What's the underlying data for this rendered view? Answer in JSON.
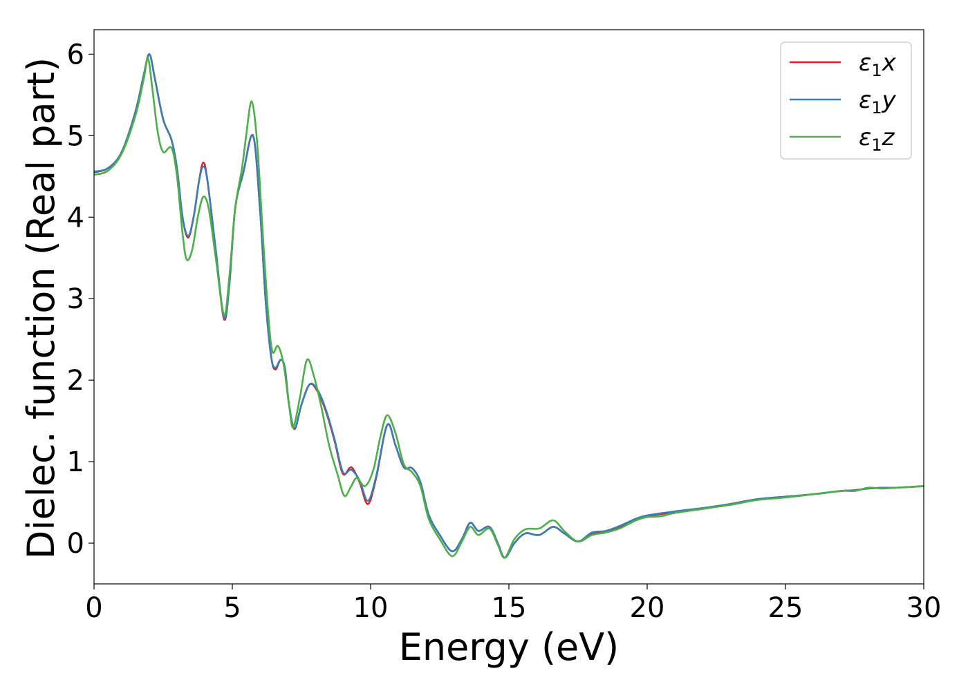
{
  "chart_data": {
    "type": "line",
    "xlabel": "Energy (eV)",
    "ylabel": "Dielec. function (Real part)",
    "xlim": [
      0,
      30
    ],
    "ylim": [
      -0.5,
      6.3
    ],
    "xticks": [
      "0",
      "5",
      "10",
      "15",
      "20",
      "25",
      "30"
    ],
    "yticks": [
      "0",
      "1",
      "2",
      "3",
      "4",
      "5",
      "6"
    ],
    "grid": false,
    "legend_position": "top-right",
    "series": [
      {
        "name": "ε₁x",
        "name_base": "ε",
        "name_sub": "1",
        "name_suffix": "x",
        "color": "#e41a1c",
        "points": [
          [
            0,
            4.55
          ],
          [
            0.5,
            4.6
          ],
          [
            1.0,
            4.8
          ],
          [
            1.5,
            5.3
          ],
          [
            1.8,
            5.75
          ],
          [
            2.0,
            6.0
          ],
          [
            2.2,
            5.7
          ],
          [
            2.5,
            5.2
          ],
          [
            2.8,
            4.95
          ],
          [
            3.0,
            4.6
          ],
          [
            3.2,
            4.0
          ],
          [
            3.4,
            3.75
          ],
          [
            3.6,
            4.0
          ],
          [
            3.8,
            4.45
          ],
          [
            3.95,
            4.67
          ],
          [
            4.1,
            4.45
          ],
          [
            4.4,
            3.6
          ],
          [
            4.7,
            2.75
          ],
          [
            4.9,
            3.2
          ],
          [
            5.1,
            4.1
          ],
          [
            5.4,
            4.55
          ],
          [
            5.75,
            5.0
          ],
          [
            6.0,
            4.1
          ],
          [
            6.2,
            3.0
          ],
          [
            6.4,
            2.3
          ],
          [
            6.55,
            2.13
          ],
          [
            6.75,
            2.25
          ],
          [
            6.9,
            2.15
          ],
          [
            7.05,
            1.7
          ],
          [
            7.25,
            1.4
          ],
          [
            7.5,
            1.7
          ],
          [
            7.8,
            1.95
          ],
          [
            8.1,
            1.85
          ],
          [
            8.4,
            1.6
          ],
          [
            8.7,
            1.25
          ],
          [
            9.0,
            0.85
          ],
          [
            9.3,
            0.93
          ],
          [
            9.6,
            0.75
          ],
          [
            9.9,
            0.48
          ],
          [
            10.2,
            0.8
          ],
          [
            10.6,
            1.45
          ],
          [
            10.9,
            1.2
          ],
          [
            11.2,
            0.93
          ],
          [
            11.5,
            0.92
          ],
          [
            11.8,
            0.75
          ],
          [
            12.1,
            0.35
          ],
          [
            12.5,
            0.1
          ],
          [
            12.95,
            -0.1
          ],
          [
            13.3,
            0.05
          ],
          [
            13.6,
            0.25
          ],
          [
            13.9,
            0.15
          ],
          [
            14.3,
            0.2
          ],
          [
            14.6,
            0.0
          ],
          [
            14.85,
            -0.18
          ],
          [
            15.2,
            0.0
          ],
          [
            15.6,
            0.12
          ],
          [
            16.1,
            0.1
          ],
          [
            16.6,
            0.2
          ],
          [
            17.0,
            0.12
          ],
          [
            17.5,
            0.02
          ],
          [
            18.0,
            0.12
          ],
          [
            18.5,
            0.14
          ],
          [
            19.0,
            0.2
          ],
          [
            19.6,
            0.3
          ],
          [
            20.0,
            0.33
          ],
          [
            21.0,
            0.38
          ],
          [
            22.0,
            0.42
          ],
          [
            23.0,
            0.48
          ],
          [
            24.0,
            0.54
          ],
          [
            25.0,
            0.57
          ],
          [
            26.0,
            0.6
          ],
          [
            27.0,
            0.64
          ],
          [
            27.5,
            0.65
          ],
          [
            28.0,
            0.67
          ],
          [
            28.5,
            0.68
          ],
          [
            29.0,
            0.68
          ],
          [
            30.0,
            0.7
          ]
        ]
      },
      {
        "name": "ε₁y",
        "name_base": "ε",
        "name_sub": "1",
        "name_suffix": "y",
        "color": "#377eb8",
        "points": [
          [
            0,
            4.56
          ],
          [
            0.5,
            4.6
          ],
          [
            1.0,
            4.8
          ],
          [
            1.5,
            5.3
          ],
          [
            1.8,
            5.75
          ],
          [
            2.0,
            6.0
          ],
          [
            2.2,
            5.7
          ],
          [
            2.5,
            5.2
          ],
          [
            2.8,
            4.95
          ],
          [
            3.0,
            4.6
          ],
          [
            3.2,
            4.0
          ],
          [
            3.4,
            3.77
          ],
          [
            3.6,
            4.0
          ],
          [
            3.8,
            4.45
          ],
          [
            3.95,
            4.62
          ],
          [
            4.1,
            4.45
          ],
          [
            4.4,
            3.6
          ],
          [
            4.7,
            2.77
          ],
          [
            4.9,
            3.2
          ],
          [
            5.1,
            4.1
          ],
          [
            5.4,
            4.55
          ],
          [
            5.75,
            5.0
          ],
          [
            6.0,
            4.1
          ],
          [
            6.2,
            3.0
          ],
          [
            6.4,
            2.3
          ],
          [
            6.55,
            2.15
          ],
          [
            6.75,
            2.25
          ],
          [
            6.9,
            2.15
          ],
          [
            7.05,
            1.7
          ],
          [
            7.25,
            1.41
          ],
          [
            7.5,
            1.7
          ],
          [
            7.8,
            1.95
          ],
          [
            8.1,
            1.87
          ],
          [
            8.4,
            1.62
          ],
          [
            8.7,
            1.27
          ],
          [
            9.0,
            0.87
          ],
          [
            9.3,
            0.9
          ],
          [
            9.6,
            0.77
          ],
          [
            9.9,
            0.52
          ],
          [
            10.2,
            0.82
          ],
          [
            10.6,
            1.45
          ],
          [
            10.9,
            1.2
          ],
          [
            11.2,
            0.93
          ],
          [
            11.5,
            0.92
          ],
          [
            11.8,
            0.75
          ],
          [
            12.1,
            0.35
          ],
          [
            12.5,
            0.1
          ],
          [
            12.95,
            -0.1
          ],
          [
            13.3,
            0.05
          ],
          [
            13.6,
            0.25
          ],
          [
            13.9,
            0.15
          ],
          [
            14.3,
            0.2
          ],
          [
            14.6,
            0.0
          ],
          [
            14.85,
            -0.18
          ],
          [
            15.2,
            0.0
          ],
          [
            15.6,
            0.12
          ],
          [
            16.1,
            0.1
          ],
          [
            16.6,
            0.2
          ],
          [
            17.0,
            0.12
          ],
          [
            17.5,
            0.02
          ],
          [
            18.0,
            0.13
          ],
          [
            18.5,
            0.15
          ],
          [
            19.0,
            0.21
          ],
          [
            19.6,
            0.3
          ],
          [
            20.0,
            0.34
          ],
          [
            21.0,
            0.39
          ],
          [
            22.0,
            0.43
          ],
          [
            23.0,
            0.48
          ],
          [
            24.0,
            0.54
          ],
          [
            25.0,
            0.57
          ],
          [
            26.0,
            0.6
          ],
          [
            27.0,
            0.64
          ],
          [
            27.5,
            0.65
          ],
          [
            28.0,
            0.67
          ],
          [
            28.5,
            0.68
          ],
          [
            29.0,
            0.68
          ],
          [
            30.0,
            0.7
          ]
        ]
      },
      {
        "name": "ε₁z",
        "name_base": "ε",
        "name_sub": "1",
        "name_suffix": "z",
        "color": "#4daf4a",
        "points": [
          [
            0,
            4.52
          ],
          [
            0.5,
            4.57
          ],
          [
            1.0,
            4.78
          ],
          [
            1.5,
            5.25
          ],
          [
            1.8,
            5.7
          ],
          [
            1.95,
            5.95
          ],
          [
            2.1,
            5.6
          ],
          [
            2.3,
            5.05
          ],
          [
            2.5,
            4.8
          ],
          [
            2.8,
            4.85
          ],
          [
            3.0,
            4.5
          ],
          [
            3.2,
            3.8
          ],
          [
            3.35,
            3.48
          ],
          [
            3.55,
            3.6
          ],
          [
            3.75,
            4.0
          ],
          [
            3.95,
            4.25
          ],
          [
            4.15,
            4.1
          ],
          [
            4.4,
            3.5
          ],
          [
            4.7,
            2.8
          ],
          [
            4.9,
            3.3
          ],
          [
            5.1,
            4.1
          ],
          [
            5.35,
            4.6
          ],
          [
            5.5,
            5.0
          ],
          [
            5.7,
            5.42
          ],
          [
            5.9,
            4.9
          ],
          [
            6.1,
            3.8
          ],
          [
            6.3,
            2.8
          ],
          [
            6.45,
            2.35
          ],
          [
            6.65,
            2.42
          ],
          [
            6.85,
            2.2
          ],
          [
            7.05,
            1.7
          ],
          [
            7.2,
            1.42
          ],
          [
            7.45,
            1.8
          ],
          [
            7.7,
            2.25
          ],
          [
            7.95,
            2.05
          ],
          [
            8.2,
            1.7
          ],
          [
            8.5,
            1.2
          ],
          [
            8.8,
            0.85
          ],
          [
            9.05,
            0.58
          ],
          [
            9.3,
            0.7
          ],
          [
            9.5,
            0.8
          ],
          [
            9.8,
            0.7
          ],
          [
            10.1,
            0.9
          ],
          [
            10.35,
            1.3
          ],
          [
            10.6,
            1.57
          ],
          [
            10.9,
            1.35
          ],
          [
            11.2,
            0.97
          ],
          [
            11.5,
            0.87
          ],
          [
            11.8,
            0.7
          ],
          [
            12.1,
            0.3
          ],
          [
            12.5,
            0.05
          ],
          [
            12.95,
            -0.16
          ],
          [
            13.3,
            0.02
          ],
          [
            13.6,
            0.2
          ],
          [
            13.9,
            0.1
          ],
          [
            14.3,
            0.18
          ],
          [
            14.6,
            -0.02
          ],
          [
            14.85,
            -0.18
          ],
          [
            15.2,
            0.05
          ],
          [
            15.6,
            0.17
          ],
          [
            16.1,
            0.18
          ],
          [
            16.6,
            0.28
          ],
          [
            17.0,
            0.15
          ],
          [
            17.5,
            0.02
          ],
          [
            18.0,
            0.1
          ],
          [
            18.5,
            0.13
          ],
          [
            19.0,
            0.18
          ],
          [
            19.6,
            0.28
          ],
          [
            20.0,
            0.32
          ],
          [
            20.5,
            0.33
          ],
          [
            21.0,
            0.37
          ],
          [
            22.0,
            0.42
          ],
          [
            23.0,
            0.47
          ],
          [
            24.0,
            0.53
          ],
          [
            25.0,
            0.56
          ],
          [
            26.0,
            0.6
          ],
          [
            27.0,
            0.64
          ],
          [
            27.5,
            0.64
          ],
          [
            28.0,
            0.68
          ],
          [
            28.5,
            0.67
          ],
          [
            29.0,
            0.68
          ],
          [
            30.0,
            0.7
          ]
        ]
      }
    ]
  }
}
